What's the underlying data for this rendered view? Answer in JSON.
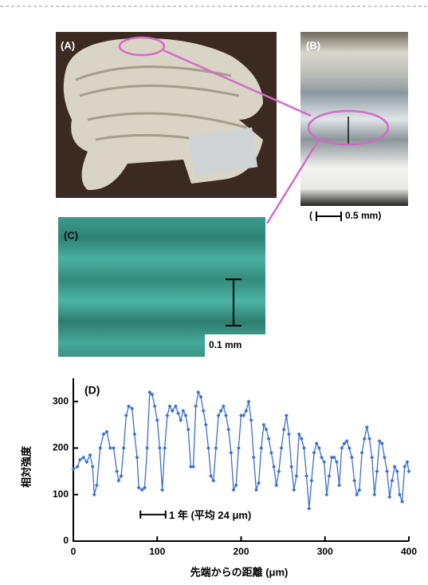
{
  "panels": {
    "a": {
      "label": "(A)"
    },
    "b": {
      "label": "(B)",
      "scale_open": "(",
      "scale": "0.5 mm)"
    },
    "c": {
      "label": "(C)",
      "scale": "0.1 mm"
    }
  },
  "chart_data": {
    "type": "line",
    "title": "(D)",
    "xlabel": "先端からの距離 (μm)",
    "ylabel": "相対強度",
    "annotation": "1 年 (平均 24 μm)",
    "xlim": [
      0,
      400
    ],
    "ylim": [
      0,
      350
    ],
    "xticks": [
      0,
      100,
      200,
      300,
      400
    ],
    "yticks": [
      0,
      100,
      200,
      300
    ],
    "series": [
      {
        "name": "相対強度",
        "color": "#3d6fd0",
        "x": [
          0,
          5,
          8,
          12,
          16,
          20,
          23,
          25,
          28,
          32,
          36,
          40,
          44,
          48,
          52,
          54,
          57,
          60,
          63,
          66,
          70,
          73,
          76,
          78,
          82,
          85,
          88,
          91,
          94,
          97,
          100,
          103,
          106,
          109,
          112,
          115,
          118,
          122,
          125,
          128,
          131,
          134,
          137,
          140,
          143,
          146,
          149,
          152,
          155,
          158,
          161,
          164,
          167,
          170,
          173,
          176,
          179,
          182,
          185,
          188,
          191,
          194,
          197,
          200,
          203,
          206,
          209,
          212,
          215,
          218,
          221,
          224,
          227,
          230,
          233,
          236,
          239,
          242,
          245,
          248,
          251,
          254,
          257,
          260,
          263,
          266,
          269,
          272,
          275,
          278,
          281,
          284,
          287,
          290,
          293,
          296,
          299,
          302,
          305,
          308,
          311,
          314,
          317,
          320,
          323,
          326,
          329,
          332,
          335,
          338,
          341,
          344,
          347,
          350,
          353,
          356,
          359,
          362,
          365,
          368,
          371,
          374,
          377,
          380,
          383,
          386,
          389,
          392,
          395,
          398,
          400
        ],
        "values": [
          155,
          160,
          175,
          180,
          170,
          185,
          160,
          100,
          120,
          200,
          230,
          235,
          200,
          200,
          150,
          130,
          140,
          200,
          270,
          290,
          285,
          230,
          180,
          115,
          110,
          115,
          200,
          320,
          315,
          290,
          260,
          200,
          110,
          200,
          270,
          290,
          280,
          290,
          275,
          260,
          280,
          270,
          240,
          160,
          160,
          290,
          320,
          310,
          280,
          250,
          200,
          140,
          130,
          200,
          270,
          280,
          290,
          270,
          240,
          190,
          110,
          120,
          200,
          270,
          270,
          280,
          300,
          260,
          180,
          110,
          125,
          200,
          250,
          240,
          220,
          190,
          160,
          120,
          150,
          200,
          240,
          270,
          230,
          160,
          110,
          140,
          230,
          220,
          200,
          140,
          70,
          130,
          190,
          210,
          200,
          180,
          170,
          100,
          140,
          180,
          180,
          170,
          120,
          200,
          210,
          215,
          200,
          180,
          130,
          100,
          110,
          190,
          220,
          245,
          220,
          180,
          100,
          150,
          215,
          210,
          180,
          150,
          95,
          130,
          160,
          150,
          100,
          85,
          160,
          170,
          150
        ]
      }
    ]
  }
}
